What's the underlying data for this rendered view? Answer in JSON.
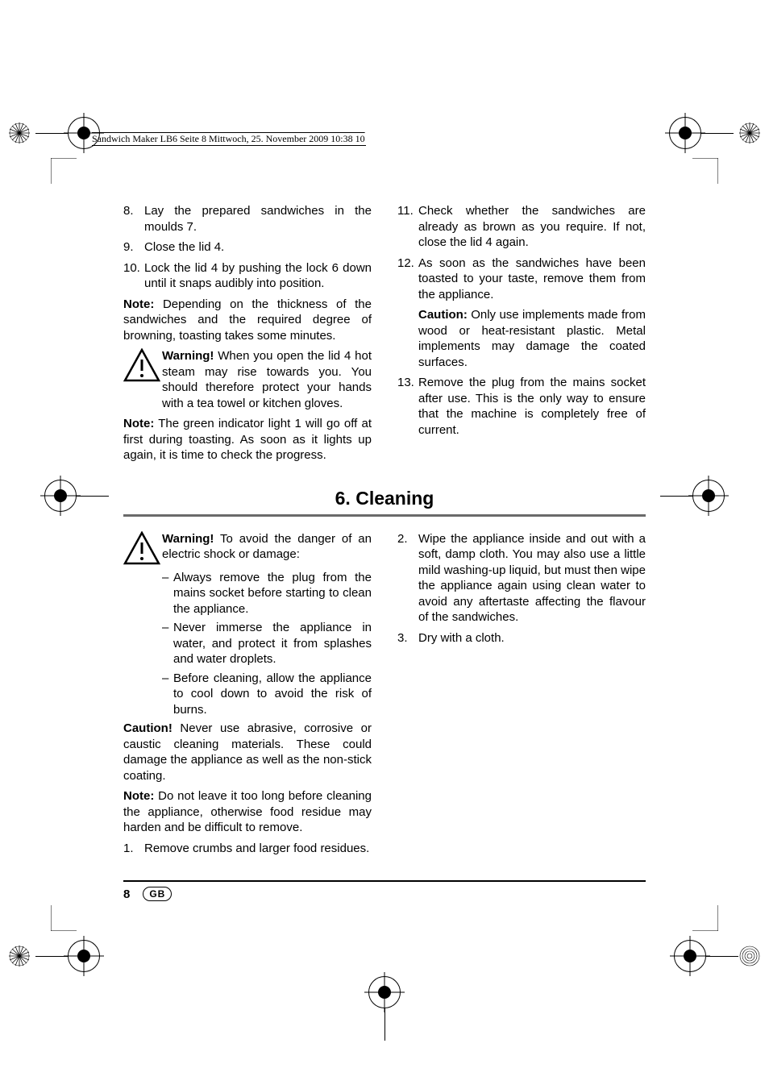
{
  "header": {
    "text": "Sandwich Maker LB6  Seite 8  Mittwoch, 25. November 2009  10:38 10"
  },
  "section5": {
    "left": {
      "steps": [
        {
          "n": "8.",
          "t": "Lay the prepared sandwiches in the moulds 7."
        },
        {
          "n": "9.",
          "t": "Close the lid 4."
        },
        {
          "n": "10.",
          "t": "Lock the lid 4 by pushing the lock 6 down until it snaps audibly into position."
        }
      ],
      "note1_label": "Note:",
      "note1": " Depending on the thickness of the sandwiches and the required degree of browning, toasting takes some minutes.",
      "warn_label": "Warning!",
      "warn": " When you open the lid 4 hot steam may rise towards you. You should therefore protect your hands with a tea towel or kitchen gloves.",
      "note2_label": "Note:",
      "note2": " The green indicator light 1 will go off at first during toasting. As soon as it lights up again, it is time to check the progress."
    },
    "right": {
      "steps": [
        {
          "n": "11.",
          "t": "Check whether the sandwiches are already as brown as you require. If not, close the lid 4 again."
        },
        {
          "n": "12.",
          "t": "As soon as the sandwiches have been toasted to your taste, remove them from the appliance."
        }
      ],
      "caution_label": "Caution:",
      "caution": " Only use implements made from wood or heat-resistant plastic. Metal implements may damage the coated surfaces.",
      "step13": {
        "n": "13.",
        "t": "Remove the plug from the mains socket after use. This is the only way to ensure that the machine is completely free of current."
      }
    }
  },
  "section6": {
    "title": "6. Cleaning",
    "left": {
      "warn_label": "Warning!",
      "warn_intro": " To avoid the danger of an electric shock or damage:",
      "bullets": [
        "Always remove the plug from the mains socket before starting to clean the appliance.",
        "Never immerse the appliance in water, and protect it from splashes and water droplets.",
        "Before cleaning, allow the appliance to cool down to avoid the risk of burns."
      ],
      "caution_label": "Caution!",
      "caution": " Never use abrasive, corrosive or caustic cleaning materials. These could damage the appliance as well as the non-stick coating.",
      "note_label": "Note:",
      "note": " Do not leave it too long before cleaning the appliance, otherwise food residue may harden and be difficult to remove.",
      "step1": {
        "n": "1.",
        "t": "Remove crumbs and larger food residues."
      }
    },
    "right": {
      "step2": {
        "n": "2.",
        "t": "Wipe the appliance inside and out with a soft, damp cloth. You may also use a little mild washing-up liquid, but must then wipe the appliance again using clean water to avoid any aftertaste affecting the flavour of the sandwiches."
      },
      "step3": {
        "n": "3.",
        "t": "Dry with a cloth."
      }
    }
  },
  "footer": {
    "page": "8",
    "lang": "GB"
  },
  "colors": {
    "rule": "#6a6a6a",
    "text": "#000000"
  }
}
